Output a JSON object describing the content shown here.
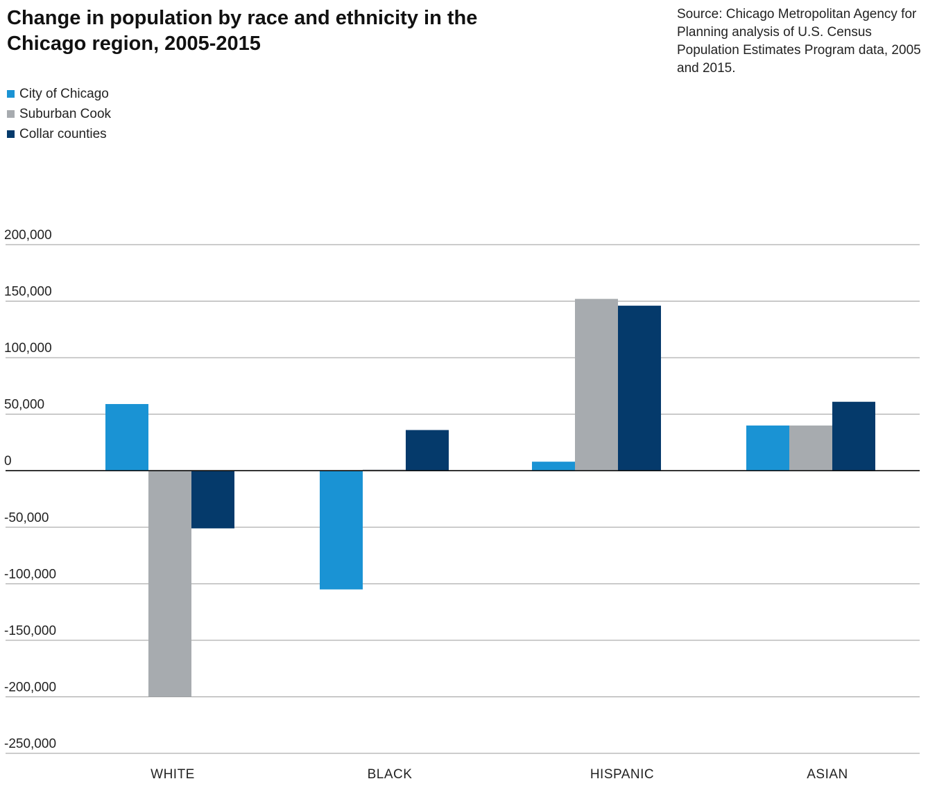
{
  "title": "Change in population by race and ethnicity in the Chicago region, 2005-2015",
  "source": "Source: Chicago Metropolitan Agency for Planning analysis of U.S. Census Population Estimates Program data, 2005 and 2015.",
  "legend": [
    {
      "label": "City of Chicago",
      "color": "#1a93d4"
    },
    {
      "label": "Suburban Cook",
      "color": "#a7abaf"
    },
    {
      "label": "Collar counties",
      "color": "#053a6b"
    }
  ],
  "chart_data": {
    "type": "bar",
    "title": "Change in population by race and ethnicity in the Chicago region, 2005-2015",
    "categories": [
      "WHITE",
      "BLACK",
      "HISPANIC",
      "ASIAN"
    ],
    "series": [
      {
        "name": "City of Chicago",
        "color": "#1a93d4",
        "values": [
          59000,
          -105000,
          8000,
          40000
        ]
      },
      {
        "name": "Suburban Cook",
        "color": "#a7abaf",
        "values": [
          -200000,
          1000,
          152000,
          40000
        ]
      },
      {
        "name": "Collar counties",
        "color": "#053a6b",
        "values": [
          -51000,
          36000,
          146000,
          61000
        ]
      }
    ],
    "ylim": [
      -250000,
      200000
    ],
    "yticks": [
      200000,
      150000,
      100000,
      50000,
      0,
      -50000,
      -100000,
      -150000,
      -200000,
      -250000
    ],
    "ytick_labels": [
      "200,000",
      "150,000",
      "100,000",
      "50,000",
      "0",
      "-50,000",
      "-100,000",
      "-150,000",
      "-200,000",
      "-250,000"
    ],
    "xlabel": "",
    "ylabel": "",
    "grid": true,
    "legend_position": "top-left"
  }
}
